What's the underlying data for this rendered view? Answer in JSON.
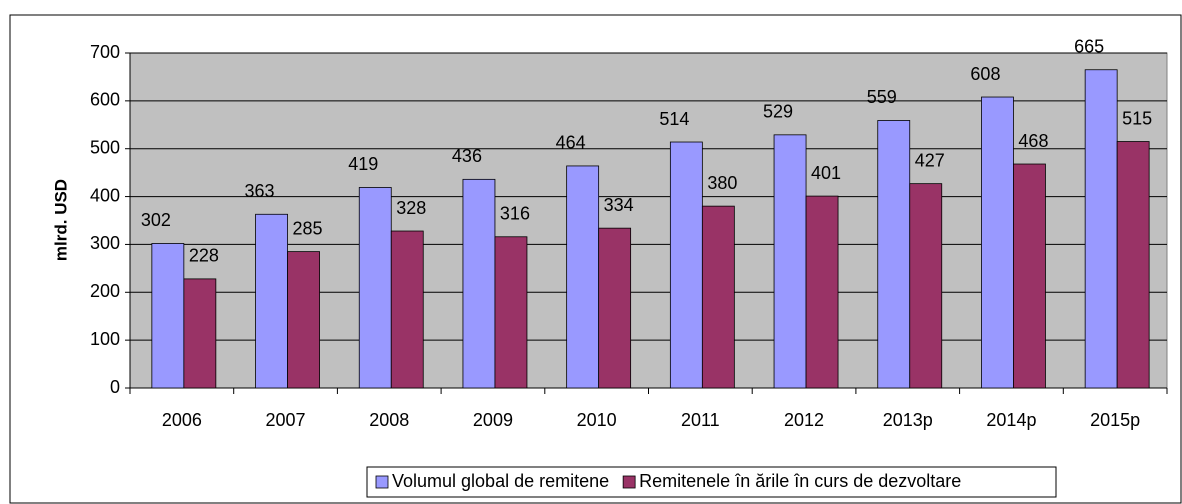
{
  "chart_data": {
    "type": "bar",
    "y_label": "mlrd. USD",
    "categories": [
      "2006",
      "2007",
      "2008",
      "2009",
      "2010",
      "2011",
      "2012",
      "2013p",
      "2014p",
      "2015p"
    ],
    "series": [
      {
        "name": "Volumul global de remitene",
        "color": "#9999ff",
        "values": [
          302,
          363,
          419,
          436,
          464,
          514,
          529,
          559,
          608,
          665
        ]
      },
      {
        "name": "Remitenele în ările în curs de dezvoltare",
        "color": "#993366",
        "values": [
          228,
          285,
          328,
          316,
          334,
          380,
          401,
          427,
          468,
          515
        ]
      }
    ],
    "ylim": [
      0,
      700
    ],
    "yticks": [
      0,
      100,
      200,
      300,
      400,
      500,
      600,
      700
    ],
    "grid": true,
    "legend": "bottom",
    "plot_background": "#c0c0c0"
  }
}
